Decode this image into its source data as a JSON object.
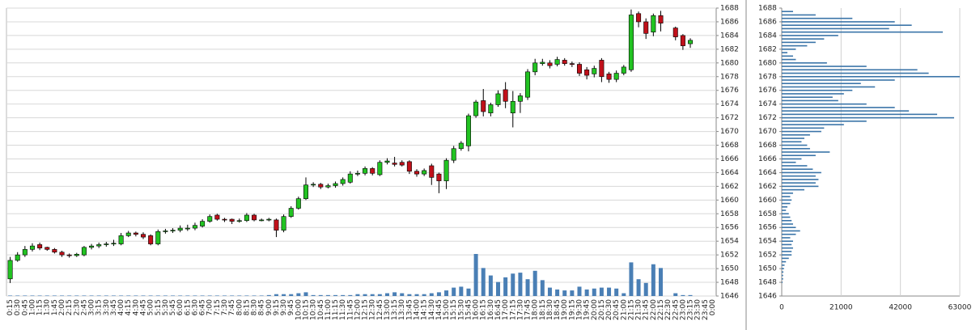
{
  "chart_data": [
    {
      "type": "candlestick",
      "categories": [
        "0:15",
        "0:30",
        "0:45",
        "1:00",
        "1:15",
        "1:30",
        "1:45",
        "2:00",
        "2:15",
        "2:30",
        "2:45",
        "3:00",
        "3:15",
        "3:30",
        "3:45",
        "4:00",
        "4:15",
        "4:30",
        "4:45",
        "5:00",
        "5:15",
        "5:30",
        "5:45",
        "6:00",
        "6:15",
        "6:30",
        "6:45",
        "7:00",
        "7:15",
        "7:30",
        "7:45",
        "8:00",
        "8:15",
        "8:30",
        "8:45",
        "9:00",
        "9:15",
        "9:30",
        "9:45",
        "10:00",
        "10:15",
        "10:30",
        "10:45",
        "11:00",
        "11:15",
        "11:30",
        "11:45",
        "12:00",
        "12:15",
        "12:30",
        "12:45",
        "13:00",
        "13:15",
        "13:30",
        "13:45",
        "14:00",
        "14:15",
        "14:30",
        "14:45",
        "15:00",
        "15:15",
        "15:30",
        "15:45",
        "16:00",
        "16:15",
        "16:30",
        "16:45",
        "17:00",
        "17:15",
        "17:30",
        "17:45",
        "18:00",
        "18:15",
        "18:30",
        "18:45",
        "19:00",
        "19:15",
        "19:30",
        "19:45",
        "20:00",
        "20:15",
        "20:30",
        "20:45",
        "21:00",
        "21:15",
        "21:30",
        "21:45",
        "22:00",
        "22:15",
        "22:30",
        "22:45",
        "23:00",
        "23:15",
        "23:30",
        "23:45",
        "0:00"
      ],
      "open": [
        1648.5,
        1651.2,
        1652.0,
        1652.8,
        1653.5,
        1653.1,
        1652.8,
        1652.4,
        1652.0,
        1651.9,
        1652.0,
        1653.1,
        1653.3,
        1653.5,
        1653.6,
        1653.6,
        1654.8,
        1655.2,
        1655.0,
        1654.8,
        1653.6,
        1655.4,
        1655.5,
        1655.6,
        1655.9,
        1655.9,
        1656.2,
        1656.9,
        1657.8,
        1657.2,
        1657.2,
        1656.9,
        1657.0,
        1657.8,
        1657.1,
        1657.1,
        1657.1,
        1655.6,
        1657.6,
        1658.8,
        1660.2,
        1662.2,
        1662.3,
        1661.9,
        1662.1,
        1662.4,
        1662.6,
        1663.8,
        1663.9,
        1664.6,
        1663.7,
        1665.5,
        1665.4,
        1665.5,
        1665.6,
        1664.2,
        1663.8,
        1665.0,
        1663.8,
        1662.8,
        1665.8,
        1667.5,
        1667.9,
        1672.3,
        1674.5,
        1672.7,
        1673.9,
        1676.1,
        1672.7,
        1674.4,
        1675.0,
        1678.7,
        1679.9,
        1680.0,
        1679.8,
        1680.4,
        1679.9,
        1679.8,
        1679.0,
        1678.4,
        1680.4,
        1678.4,
        1677.6,
        1678.5,
        1679.0,
        1687.2,
        1686.0,
        1684.5,
        1686.9,
        null,
        1685.1,
        1684.0,
        1682.8,
        null,
        null,
        null
      ],
      "high": [
        1651.7,
        1652.4,
        1653.3,
        1653.7,
        1653.8,
        1653.2,
        1653.0,
        1652.6,
        1652.2,
        1652.3,
        1653.3,
        1653.6,
        1653.8,
        1653.9,
        1654.2,
        1655.2,
        1655.5,
        1655.4,
        1655.3,
        1655.0,
        1655.7,
        1655.8,
        1655.9,
        1656.3,
        1656.4,
        1656.7,
        1657.2,
        1657.9,
        1658.0,
        1657.4,
        1657.3,
        1657.3,
        1658.1,
        1658.0,
        1657.3,
        1657.4,
        1657.3,
        1657.9,
        1659.1,
        1660.5,
        1663.3,
        1662.6,
        1662.5,
        1662.4,
        1662.7,
        1663.3,
        1664.2,
        1664.3,
        1664.9,
        1664.8,
        1665.8,
        1666.1,
        1666.3,
        1665.8,
        1665.8,
        1664.5,
        1664.6,
        1665.3,
        1664.0,
        1666.1,
        1667.9,
        1668.6,
        1672.6,
        1674.6,
        1676.2,
        1674.2,
        1676.0,
        1677.2,
        1675.9,
        1675.6,
        1679.1,
        1680.6,
        1680.6,
        1680.4,
        1680.9,
        1680.7,
        1680.2,
        1680.1,
        1679.4,
        1679.6,
        1680.7,
        1678.7,
        1678.9,
        1679.7,
        1687.8,
        1687.5,
        1686.5,
        1687.2,
        1687.6,
        null,
        1685.3,
        1684.2,
        1683.6,
        null,
        null,
        null
      ],
      "low": [
        1647.9,
        1651.0,
        1651.7,
        1652.5,
        1652.7,
        1652.6,
        1652.2,
        1651.7,
        1651.6,
        1651.7,
        1651.8,
        1652.8,
        1653.0,
        1653.2,
        1653.3,
        1653.4,
        1654.6,
        1654.7,
        1654.3,
        1653.4,
        1653.4,
        1655.1,
        1655.2,
        1655.3,
        1655.5,
        1655.6,
        1656.0,
        1656.7,
        1657.0,
        1656.8,
        1656.5,
        1656.7,
        1656.8,
        1656.9,
        1656.9,
        1656.9,
        1654.6,
        1655.3,
        1657.4,
        1658.6,
        1660.0,
        1661.9,
        1661.6,
        1661.7,
        1661.8,
        1662.1,
        1662.4,
        1663.5,
        1663.6,
        1663.6,
        1663.5,
        1665.2,
        1664.9,
        1664.9,
        1663.8,
        1663.4,
        1663.5,
        1662.2,
        1661.0,
        1661.6,
        1665.4,
        1667.2,
        1667.1,
        1672.0,
        1672.2,
        1672.2,
        1673.6,
        1673.4,
        1670.6,
        1672.7,
        1674.6,
        1678.2,
        1679.6,
        1679.2,
        1679.5,
        1679.6,
        1679.4,
        1678.1,
        1677.6,
        1677.9,
        1677.2,
        1677.1,
        1677.2,
        1678.2,
        1678.7,
        1685.2,
        1683.5,
        1683.9,
        1684.6,
        null,
        1683.3,
        1681.9,
        1682.2,
        null,
        null,
        null
      ],
      "close": [
        1651.2,
        1652.0,
        1652.8,
        1653.3,
        1653.0,
        1652.8,
        1652.4,
        1652.0,
        1651.9,
        1652.1,
        1653.1,
        1653.3,
        1653.5,
        1653.6,
        1653.7,
        1654.8,
        1655.2,
        1655.0,
        1654.6,
        1653.6,
        1655.4,
        1655.5,
        1655.6,
        1655.9,
        1655.9,
        1656.3,
        1656.9,
        1657.6,
        1657.2,
        1657.1,
        1656.9,
        1657.0,
        1657.8,
        1657.1,
        1657.1,
        1657.2,
        1655.6,
        1657.6,
        1658.8,
        1660.2,
        1662.2,
        1662.3,
        1661.9,
        1662.1,
        1662.4,
        1663.0,
        1663.8,
        1663.9,
        1664.6,
        1663.9,
        1665.5,
        1665.7,
        1665.2,
        1665.1,
        1664.2,
        1663.8,
        1664.3,
        1663.3,
        1662.8,
        1665.8,
        1667.5,
        1668.3,
        1672.3,
        1674.3,
        1672.9,
        1673.9,
        1675.5,
        1674.4,
        1674.4,
        1675.2,
        1678.7,
        1680.0,
        1680.1,
        1679.6,
        1680.5,
        1679.9,
        1679.8,
        1678.5,
        1678.2,
        1679.2,
        1678.0,
        1677.6,
        1678.5,
        1679.4,
        1687.0,
        1686.0,
        1684.3,
        1686.9,
        1685.8,
        null,
        1683.8,
        1682.5,
        1683.3,
        null,
        null,
        null
      ],
      "volume": [
        0.5,
        0.5,
        0.5,
        0.5,
        0.5,
        0.5,
        0.5,
        0.5,
        0.5,
        0.5,
        0.5,
        0.5,
        0.5,
        0.5,
        0.5,
        0.5,
        0.5,
        0.5,
        0.5,
        0.5,
        0.5,
        0.5,
        0.5,
        0.5,
        0.5,
        0.5,
        0.5,
        0.5,
        0.5,
        0.5,
        0.5,
        0.5,
        0.5,
        0.5,
        0.5,
        1,
        2,
        2,
        2,
        3,
        4,
        1,
        1,
        1,
        1,
        1,
        1,
        2,
        2,
        2,
        2,
        3,
        4,
        3,
        2,
        2,
        2,
        3,
        4,
        6,
        9,
        10,
        8,
        45,
        30,
        22,
        15,
        20,
        24,
        25,
        18,
        27,
        17,
        9,
        7,
        6,
        6,
        10,
        7,
        8,
        9,
        9,
        8,
        3,
        36,
        18,
        14,
        34,
        30,
        null,
        3,
        1,
        1,
        null,
        null,
        null
      ],
      "up_color": "#22c322",
      "down_color": "#c0101a",
      "volume_color": "#4a7fb5",
      "ylim": [
        1646,
        1688
      ],
      "yticks": [
        1646,
        1648,
        1650,
        1652,
        1654,
        1656,
        1658,
        1660,
        1662,
        1664,
        1666,
        1668,
        1670,
        1672,
        1674,
        1676,
        1678,
        1680,
        1682,
        1684,
        1686,
        1688
      ],
      "grid": true
    },
    {
      "type": "bar",
      "orientation": "horizontal",
      "levels": [
        1648.0,
        1648.5,
        1649.0,
        1649.5,
        1650.0,
        1650.5,
        1651.0,
        1651.5,
        1652.0,
        1652.5,
        1653.0,
        1653.5,
        1654.0,
        1654.5,
        1655.0,
        1655.5,
        1656.0,
        1656.5,
        1657.0,
        1657.5,
        1658.0,
        1658.5,
        1659.0,
        1659.5,
        1660.0,
        1660.5,
        1661.0,
        1661.5,
        1662.0,
        1662.5,
        1663.0,
        1663.5,
        1664.0,
        1664.5,
        1665.0,
        1665.5,
        1666.0,
        1666.5,
        1667.0,
        1667.5,
        1668.0,
        1668.5,
        1669.0,
        1669.5,
        1670.0,
        1670.5,
        1671.0,
        1671.5,
        1672.0,
        1672.5,
        1673.0,
        1673.5,
        1674.0,
        1674.5,
        1675.0,
        1675.5,
        1676.0,
        1676.5,
        1677.0,
        1677.5,
        1678.0,
        1678.5,
        1679.0,
        1679.5,
        1680.0,
        1680.5,
        1681.0,
        1681.5,
        1682.0,
        1682.5,
        1683.0,
        1683.5,
        1684.0,
        1684.5,
        1685.0,
        1685.5,
        1686.0,
        1686.5,
        1687.0,
        1687.5
      ],
      "values": [
        300,
        500,
        500,
        600,
        800,
        1000,
        1500,
        2500,
        3500,
        3500,
        4000,
        3500,
        4000,
        3000,
        5000,
        6500,
        5000,
        4000,
        3500,
        3000,
        2500,
        1500,
        2000,
        3000,
        3500,
        3000,
        4000,
        8000,
        13000,
        12000,
        13000,
        12000,
        14000,
        11000,
        9000,
        5000,
        7000,
        12000,
        17000,
        10000,
        9000,
        7000,
        8000,
        10000,
        14000,
        15000,
        22000,
        30000,
        61000,
        55000,
        45000,
        40000,
        30000,
        20000,
        18000,
        22000,
        25000,
        33000,
        28000,
        40000,
        63000,
        52000,
        48000,
        30000,
        16000,
        5000,
        4000,
        2000,
        5000,
        9000,
        12000,
        15000,
        20000,
        57000,
        38000,
        46000,
        40000,
        25000,
        12000,
        4000
      ],
      "color": "#3a74a8",
      "ylim": [
        1646,
        1688
      ],
      "yticks": [
        1646,
        1648,
        1650,
        1652,
        1654,
        1656,
        1658,
        1660,
        1662,
        1664,
        1666,
        1668,
        1670,
        1672,
        1674,
        1676,
        1678,
        1680,
        1682,
        1684,
        1686,
        1688
      ],
      "xlim": [
        0,
        63000
      ],
      "xticks": [
        0,
        21000,
        42000,
        63000
      ],
      "grid": true
    }
  ]
}
